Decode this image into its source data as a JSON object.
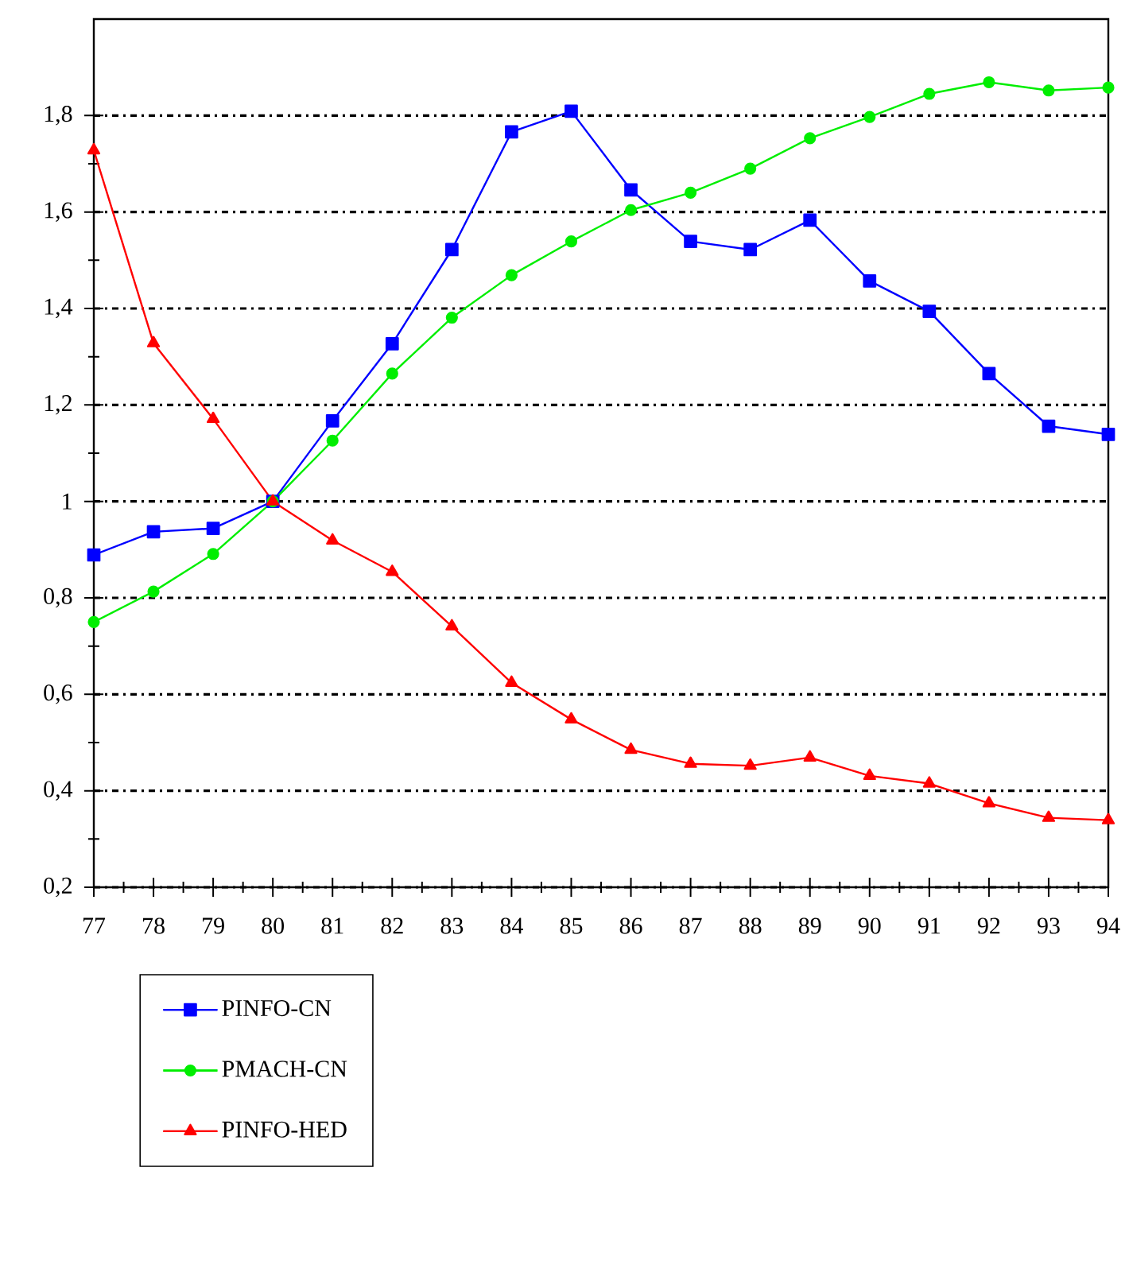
{
  "chart_data": {
    "type": "line",
    "categories": [
      "77",
      "78",
      "79",
      "80",
      "81",
      "82",
      "83",
      "84",
      "85",
      "86",
      "87",
      "88",
      "89",
      "90",
      "91",
      "92",
      "93",
      "94"
    ],
    "ylim": [
      0.2,
      2.0
    ],
    "yticks": [
      {
        "value": 0.2,
        "label": "0,2"
      },
      {
        "value": 0.4,
        "label": "0,4"
      },
      {
        "value": 0.6,
        "label": "0,6"
      },
      {
        "value": 0.8,
        "label": "0,8"
      },
      {
        "value": 1,
        "label": "1"
      },
      {
        "value": 1.2,
        "label": "1,2"
      },
      {
        "value": 1.4,
        "label": "1,4"
      },
      {
        "value": 1.6,
        "label": "1,6"
      },
      {
        "value": 1.8,
        "label": "1,8"
      }
    ],
    "grid": "y",
    "legend": "bottom left",
    "line_style": "solid",
    "series": [
      {
        "name": "PINFO-CN",
        "color": "#0000ff",
        "marker": "square",
        "values": [
          0.889,
          0.937,
          0.944,
          1.0,
          1.167,
          1.327,
          1.522,
          1.766,
          1.809,
          1.646,
          1.539,
          1.522,
          1.583,
          1.457,
          1.394,
          1.265,
          1.156,
          1.139
        ]
      },
      {
        "name": "PMACH-CN",
        "color": "#00ee00",
        "marker": "circle",
        "values": [
          0.75,
          0.813,
          0.891,
          1.0,
          1.126,
          1.265,
          1.381,
          1.469,
          1.539,
          1.604,
          1.64,
          1.69,
          1.753,
          1.797,
          1.845,
          1.869,
          1.852,
          1.858
        ]
      },
      {
        "name": "PINFO-HED",
        "color": "#ff0000",
        "marker": "triangle",
        "values": [
          1.728,
          1.328,
          1.171,
          1.0,
          0.919,
          0.854,
          0.741,
          0.624,
          0.548,
          0.485,
          0.456,
          0.452,
          0.469,
          0.431,
          0.415,
          0.374,
          0.344,
          0.339
        ]
      }
    ]
  }
}
